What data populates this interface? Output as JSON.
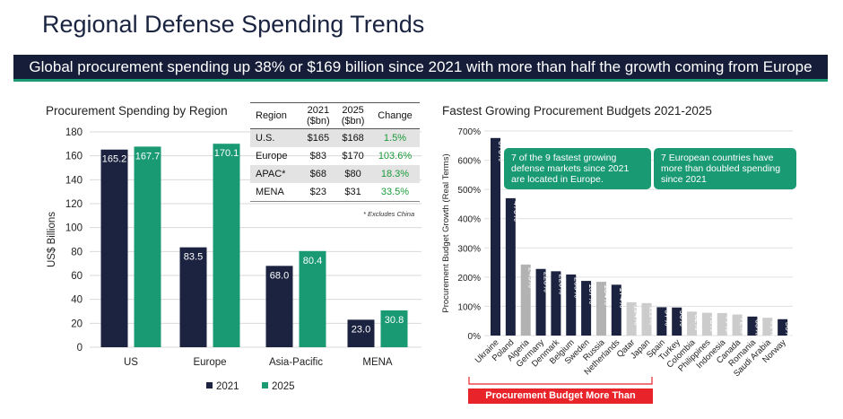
{
  "header": {
    "title": "Regional Defense Spending Trends",
    "banner": "Global procurement spending up 38% or $169 billion since 2021 with more than half the growth coming from Europe"
  },
  "colors": {
    "navy": "#1c2340",
    "green": "#1a9a72",
    "gray": "#b2b2b2",
    "red": "#e8242a"
  },
  "table": {
    "headers": [
      "Region",
      "2021\n($bn)",
      "2025\n($bn)",
      "Change"
    ],
    "rows": [
      [
        "U.S.",
        "$165",
        "$168",
        "1.5%"
      ],
      [
        "Europe",
        "$83",
        "$170",
        "103.6%"
      ],
      [
        "APAC*",
        "$68",
        "$80",
        "18.3%"
      ],
      [
        "MENA",
        "$23",
        "$31",
        "33.5%"
      ]
    ],
    "footnote": "* Excludes China"
  },
  "callouts": {
    "left": "7 of the 9 fastest growing defense markets since 2021 are located in Europe.",
    "right": "7 European countries have more than doubled spending since 2021"
  },
  "bracket_label": "Procurement Budget More Than Doubled",
  "chart_data": [
    {
      "type": "bar",
      "title": "Procurement Spending by Region",
      "ylabel": "US$ Billions",
      "xlabel": "",
      "ylim": [
        0,
        180
      ],
      "yticks": [
        0,
        20,
        40,
        60,
        80,
        100,
        120,
        140,
        160,
        180
      ],
      "grid": true,
      "legend": "bottom-center",
      "categories": [
        "US",
        "Europe",
        "Asia-Pacific",
        "MENA"
      ],
      "series": [
        {
          "name": "2021",
          "color": "#1c2340",
          "values": [
            165.2,
            83.5,
            68.0,
            23.0
          ],
          "labels": [
            "165.2",
            "83.5",
            "68.0",
            "23.0"
          ]
        },
        {
          "name": "2025",
          "color": "#1a9a72",
          "values": [
            167.7,
            170.1,
            80.4,
            30.8
          ],
          "labels": [
            "167.7",
            "170.1",
            "80.4",
            "30.8"
          ]
        }
      ]
    },
    {
      "type": "bar",
      "title": "Fastest Growing Procurement Budgets 2021-2025",
      "ylabel": "Procurement Budget Growth (Real Terms)",
      "xlabel": "",
      "ylim": [
        0,
        700
      ],
      "yticks": [
        0,
        100,
        200,
        300,
        400,
        500,
        600,
        700
      ],
      "ytick_labels": [
        "0%",
        "100%",
        "200%",
        "300%",
        "400%",
        "500%",
        "600%",
        "700%"
      ],
      "grid": true,
      "categories": [
        "Ukraine",
        "Poland",
        "Algeria",
        "Germany",
        "Denmark",
        "Belgium",
        "Sweden",
        "Russia",
        "Netherlands",
        "Qatar",
        "Japan",
        "Spain",
        "Turkey",
        "Colombia",
        "Philippines",
        "Indonesia",
        "Canada",
        "Romania",
        "Saudi Arabia",
        "Norway"
      ],
      "values": [
        676,
        470,
        243,
        228,
        220,
        209,
        187,
        184,
        174,
        114,
        111,
        97,
        96,
        82,
        78,
        77,
        72,
        65,
        61,
        56
      ],
      "labels": [
        "676%",
        "470%",
        "243%",
        "228%",
        "220%",
        "209%",
        "187%",
        "184%",
        "174%",
        "114%",
        "111%",
        "97%",
        "96%",
        "82%",
        "78%",
        "77%",
        "72%",
        "65%",
        "61%",
        "56%"
      ],
      "bar_colors": [
        "#1c2340",
        "#1c2340",
        "#b2b2b2",
        "#1c2340",
        "#1c2340",
        "#1c2340",
        "#1c2340",
        "#b2b2b2",
        "#1c2340",
        "#cccccc",
        "#cccccc",
        "#1c2340",
        "#1c2340",
        "#cccccc",
        "#cccccc",
        "#cccccc",
        "#cccccc",
        "#1c2340",
        "#cccccc",
        "#1c2340"
      ]
    }
  ]
}
